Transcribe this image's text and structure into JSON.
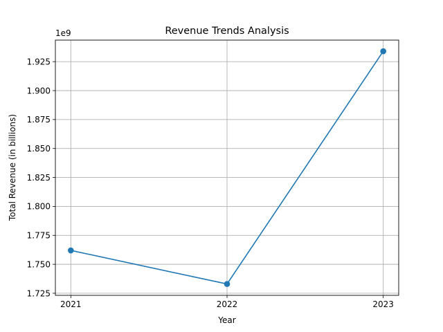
{
  "chart_data": {
    "type": "line",
    "title": "Revenue Trends Analysis",
    "xlabel": "Year",
    "ylabel": "Total Revenue (in billions)",
    "offset_label": "1e9",
    "categories": [
      "2021",
      "2022",
      "2023"
    ],
    "series": [
      {
        "values": [
          1.762,
          1.733,
          1.934
        ],
        "color": "#1f77b4",
        "marker": "circle"
      }
    ],
    "ylim": [
      1.7232,
      1.9436
    ],
    "yticks": [
      1.725,
      1.75,
      1.775,
      1.8,
      1.825,
      1.85,
      1.875,
      1.9,
      1.925
    ],
    "ytick_labels": [
      "1.725",
      "1.750",
      "1.775",
      "1.800",
      "1.825",
      "1.850",
      "1.875",
      "1.900",
      "1.925"
    ],
    "grid": true,
    "legend": false
  }
}
